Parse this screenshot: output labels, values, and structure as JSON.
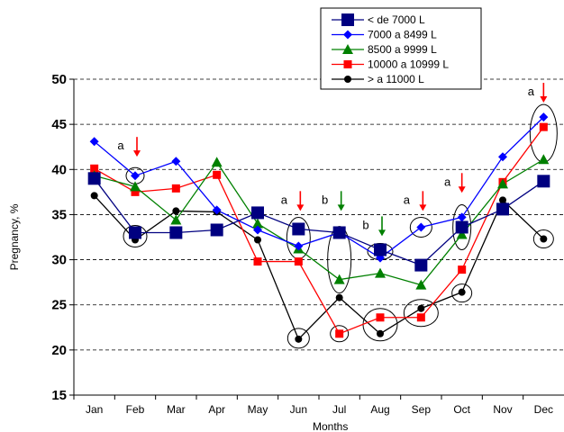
{
  "chart_data": {
    "type": "line",
    "xlabel": "Months",
    "ylabel": "Pregnancy, %",
    "ylim": [
      15,
      50
    ],
    "yticks": [
      15,
      20,
      25,
      30,
      35,
      40,
      45,
      50
    ],
    "grid": "horizontal dashed",
    "legend_position": "top-right",
    "categories": [
      "Jan",
      "Feb",
      "Mar",
      "Apr",
      "May",
      "Jun",
      "Jul",
      "Aug",
      "Sep",
      "Oct",
      "Nov",
      "Dec"
    ],
    "series": [
      {
        "name": "< de 7000 L",
        "color": "#000080",
        "marker": "square-large",
        "values": [
          39.0,
          33.0,
          33.0,
          33.3,
          35.2,
          33.4,
          33.0,
          31.1,
          29.4,
          33.6,
          35.6,
          38.7
        ]
      },
      {
        "name": "7000 a 8499 L",
        "color": "#0000ff",
        "marker": "diamond",
        "values": [
          43.1,
          39.3,
          40.9,
          35.5,
          33.3,
          31.5,
          33.0,
          30.2,
          33.6,
          34.7,
          41.4,
          45.8
        ]
      },
      {
        "name": "8500 a 9999 L",
        "color": "#008000",
        "marker": "triangle",
        "values": [
          39.3,
          38.1,
          34.4,
          40.8,
          34.0,
          31.2,
          27.8,
          28.5,
          27.2,
          32.8,
          38.4,
          41.1
        ]
      },
      {
        "name": "10000 a 10999 L",
        "color": "#ff0000",
        "marker": "square-small",
        "values": [
          40.1,
          37.5,
          37.9,
          39.4,
          29.8,
          29.8,
          21.8,
          23.6,
          23.6,
          28.9,
          38.6,
          44.7
        ]
      },
      {
        "name": "> a 11000 L",
        "color": "#000000",
        "marker": "circle",
        "values": [
          37.1,
          32.2,
          35.4,
          35.3,
          32.2,
          21.2,
          25.8,
          21.8,
          24.6,
          26.4,
          36.6,
          32.3
        ]
      }
    ],
    "annotations": [
      {
        "month": "Feb",
        "letter": "a",
        "arrow_color": "#ff0000"
      },
      {
        "month": "Jun",
        "letter": "a",
        "arrow_color": "#ff0000"
      },
      {
        "month": "Jul",
        "letter": "b",
        "arrow_color": "#008000"
      },
      {
        "month": "Aug",
        "letter": "b",
        "arrow_color": "#008000"
      },
      {
        "month": "Sep",
        "letter": "a",
        "arrow_color": "#ff0000"
      },
      {
        "month": "Oct",
        "letter": "a",
        "arrow_color": "#ff0000"
      },
      {
        "month": "Dec",
        "letter": "a",
        "arrow_color": "#ff0000"
      }
    ]
  }
}
